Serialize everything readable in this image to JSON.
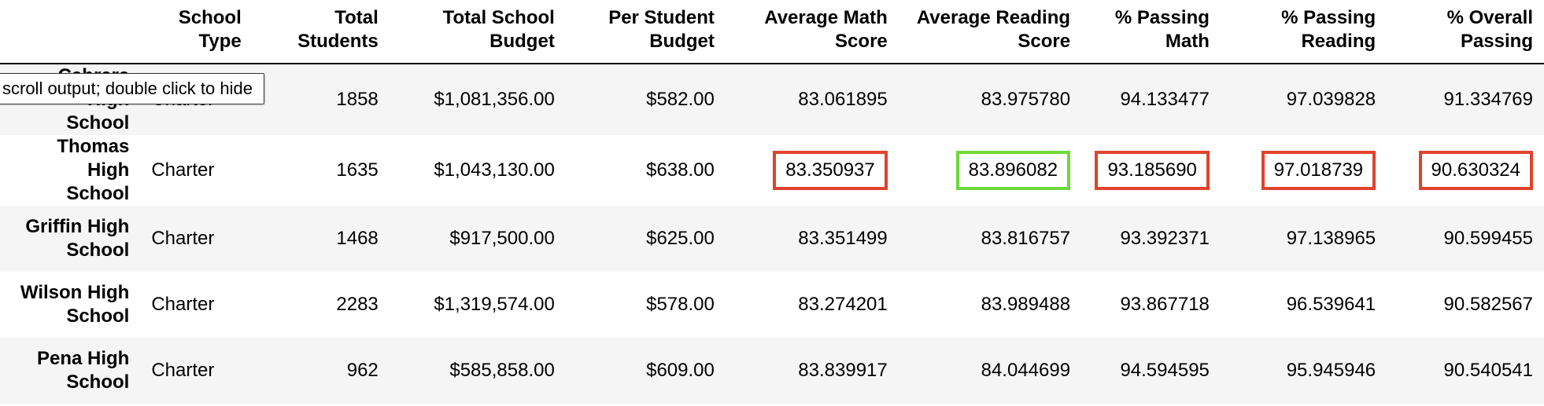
{
  "tooltip": {
    "text": "scroll output; double click to hide"
  },
  "table": {
    "columns": [
      "",
      "School\nType",
      "Total\nStudents",
      "Total School\nBudget",
      "Per Student\nBudget",
      "Average Math\nScore",
      "Average Reading\nScore",
      "% Passing\nMath",
      "% Passing\nReading",
      "% Overall\nPassing"
    ],
    "rows": [
      {
        "school": "Cabrera High\nSchool",
        "type": "Charter",
        "students": "1858",
        "budget": "$1,081,356.00",
        "per_student": "$582.00",
        "math": "83.061895",
        "reading": "83.975780",
        "pass_math": "94.133477",
        "pass_reading": "97.039828",
        "overall": "91.334769"
      },
      {
        "school": "Thomas High\nSchool",
        "type": "Charter",
        "students": "1635",
        "budget": "$1,043,130.00",
        "per_student": "$638.00",
        "math": "83.350937",
        "reading": "83.896082",
        "pass_math": "93.185690",
        "pass_reading": "97.018739",
        "overall": "90.630324"
      },
      {
        "school": "Griffin High\nSchool",
        "type": "Charter",
        "students": "1468",
        "budget": "$917,500.00",
        "per_student": "$625.00",
        "math": "83.351499",
        "reading": "83.816757",
        "pass_math": "93.392371",
        "pass_reading": "97.138965",
        "overall": "90.599455"
      },
      {
        "school": "Wilson High\nSchool",
        "type": "Charter",
        "students": "2283",
        "budget": "$1,319,574.00",
        "per_student": "$578.00",
        "math": "83.274201",
        "reading": "83.989488",
        "pass_math": "93.867718",
        "pass_reading": "96.539641",
        "overall": "90.582567"
      },
      {
        "school": "Pena High\nSchool",
        "type": "Charter",
        "students": "962",
        "budget": "$585,858.00",
        "per_student": "$609.00",
        "math": "83.839917",
        "reading": "84.044699",
        "pass_math": "94.594595",
        "pass_reading": "95.945946",
        "overall": "90.540541"
      }
    ],
    "highlight_colors": {
      "red": "#e0432b",
      "green": "#6fd93a"
    }
  }
}
